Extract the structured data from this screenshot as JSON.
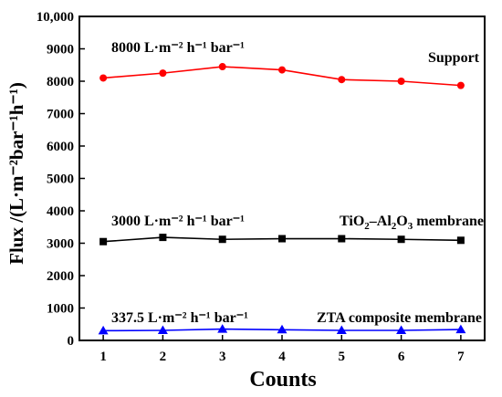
{
  "chart_data": {
    "type": "line",
    "xlabel": "Counts",
    "ylabel": "Flux /(L·m⁻²bar⁻¹h⁻¹)",
    "x": [
      1,
      2,
      3,
      4,
      5,
      6,
      7
    ],
    "xlim": [
      0.6,
      7.4
    ],
    "ylim": [
      0,
      10000
    ],
    "yticks": [
      0,
      1000,
      2000,
      3000,
      4000,
      5000,
      6000,
      7000,
      8000,
      9000,
      10000
    ],
    "ytick_labels": [
      "0",
      "1000",
      "2000",
      "3000",
      "4000",
      "5000",
      "6000",
      "7000",
      "8000",
      "9000",
      "10,000"
    ],
    "grid": false,
    "series": [
      {
        "name": "Support",
        "color": "#ff0000",
        "marker": "circle",
        "values": [
          8100,
          8250,
          8450,
          8350,
          8050,
          8000,
          7870
        ]
      },
      {
        "name": "TiO₂–Al₂O₃ membrane",
        "color": "#000000",
        "marker": "square",
        "values": [
          3050,
          3180,
          3120,
          3140,
          3140,
          3120,
          3090
        ]
      },
      {
        "name": "ZTA composite membrane",
        "color": "#0000ff",
        "marker": "triangle",
        "values": [
          300,
          310,
          350,
          330,
          310,
          310,
          335
        ]
      }
    ],
    "annotations": [
      "8000 L·m⁻² h⁻¹ bar⁻¹",
      "3000 L·m⁻² h⁻¹ bar⁻¹",
      "337.5 L·m⁻² h⁻¹ bar⁻¹"
    ]
  }
}
